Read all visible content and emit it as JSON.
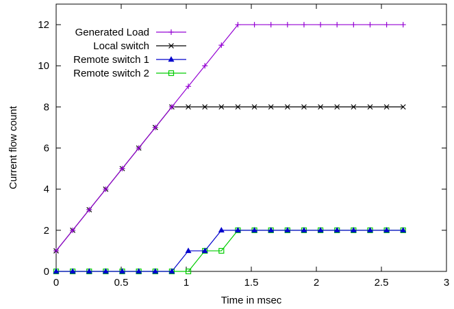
{
  "chart_data": {
    "type": "line",
    "xlabel": "Time in msec",
    "ylabel": "Current flow count",
    "xlim": [
      0,
      3
    ],
    "ylim": [
      0,
      13
    ],
    "xticks": [
      0,
      0.5,
      1,
      1.5,
      2,
      2.5,
      3
    ],
    "xtick_labels": [
      "0",
      "0.5",
      "1",
      "1.5",
      "2",
      "2.5",
      "3"
    ],
    "yticks": [
      0,
      2,
      4,
      6,
      8,
      10,
      12
    ],
    "ytick_labels": [
      "0",
      "2",
      "4",
      "6",
      "8",
      "10",
      "12"
    ],
    "grid": false,
    "legend_position": "top-left",
    "series": [
      {
        "name": "Generated Load",
        "color": "#9400d3",
        "marker": "plus",
        "x": [
          0,
          0.127,
          0.254,
          0.381,
          0.508,
          0.635,
          0.762,
          0.889,
          1.016,
          1.143,
          1.27,
          1.397,
          1.524,
          1.651,
          1.778,
          1.905,
          2.032,
          2.159,
          2.286,
          2.413,
          2.54,
          2.667
        ],
        "y": [
          1,
          2,
          3,
          4,
          5,
          6,
          7,
          8,
          9,
          10,
          11,
          12,
          12,
          12,
          12,
          12,
          12,
          12,
          12,
          12,
          12,
          12
        ]
      },
      {
        "name": "Local switch",
        "color": "#000000",
        "marker": "cross",
        "x": [
          0,
          0.127,
          0.254,
          0.381,
          0.508,
          0.635,
          0.762,
          0.889,
          1.016,
          1.143,
          1.27,
          1.397,
          1.524,
          1.651,
          1.778,
          1.905,
          2.032,
          2.159,
          2.286,
          2.413,
          2.54,
          2.667
        ],
        "y": [
          1,
          2,
          3,
          4,
          5,
          6,
          7,
          8,
          8,
          8,
          8,
          8,
          8,
          8,
          8,
          8,
          8,
          8,
          8,
          8,
          8,
          8
        ]
      },
      {
        "name": "Remote switch 1",
        "color": "#0000cc",
        "marker": "triangle",
        "x": [
          0,
          0.127,
          0.254,
          0.381,
          0.508,
          0.635,
          0.762,
          0.889,
          1.016,
          1.143,
          1.27,
          1.397,
          1.524,
          1.651,
          1.778,
          1.905,
          2.032,
          2.159,
          2.286,
          2.413,
          2.54,
          2.667
        ],
        "y": [
          0,
          0,
          0,
          0,
          0,
          0,
          0,
          0,
          1,
          1,
          2,
          2,
          2,
          2,
          2,
          2,
          2,
          2,
          2,
          2,
          2,
          2
        ]
      },
      {
        "name": "Remote switch 2",
        "color": "#00cc00",
        "marker": "square",
        "x": [
          0,
          0.127,
          0.254,
          0.381,
          0.508,
          0.635,
          0.762,
          0.889,
          1.016,
          1.143,
          1.27,
          1.397,
          1.524,
          1.651,
          1.778,
          1.905,
          2.032,
          2.159,
          2.286,
          2.413,
          2.54,
          2.667
        ],
        "y": [
          0,
          0,
          0,
          0,
          0,
          0,
          0,
          0,
          0,
          1,
          1,
          2,
          2,
          2,
          2,
          2,
          2,
          2,
          2,
          2,
          2,
          2
        ]
      }
    ]
  }
}
